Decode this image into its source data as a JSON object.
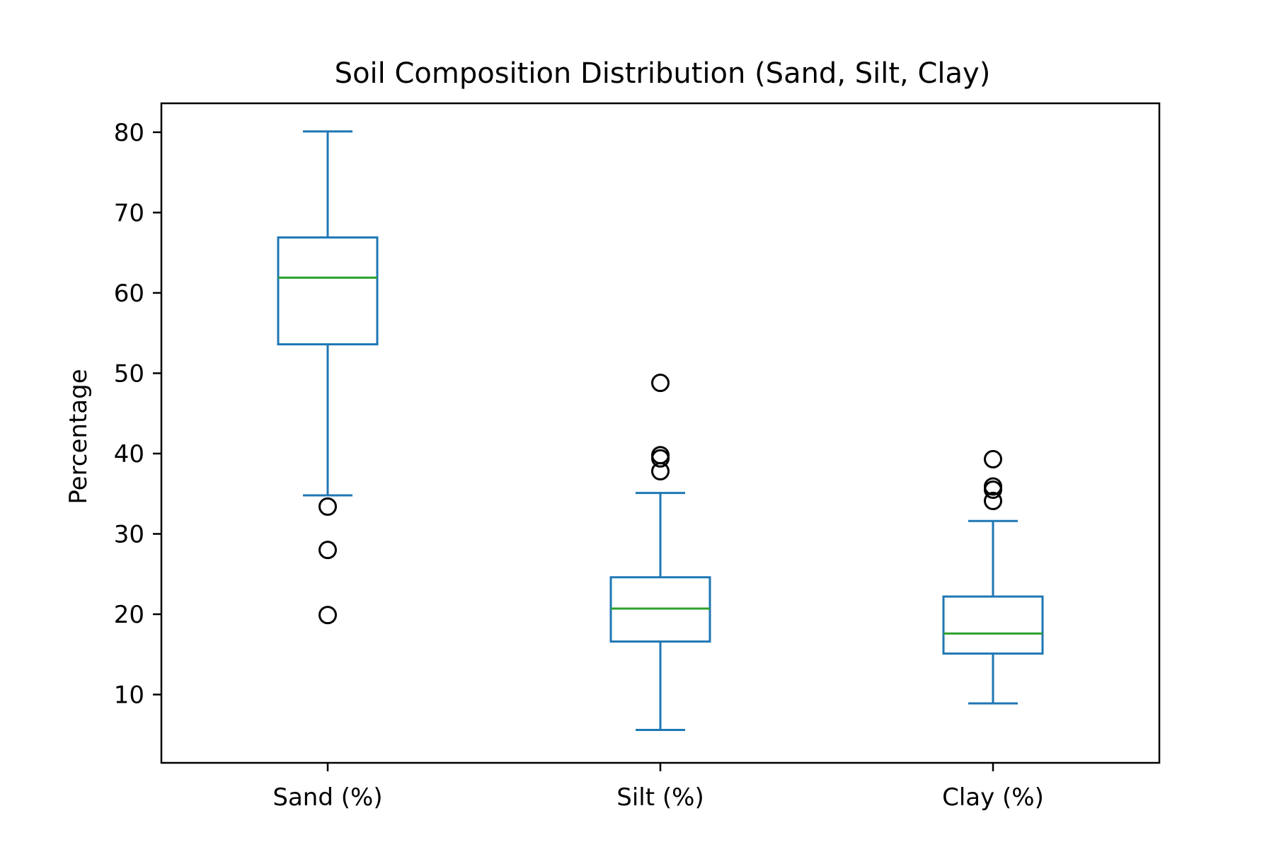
{
  "chart_data": {
    "type": "box",
    "title": "Soil Composition Distribution (Sand, Silt, Clay)",
    "xlabel": "",
    "ylabel": "Percentage",
    "ylim": [
      1.5,
      83.6
    ],
    "yticks": [
      10,
      20,
      30,
      40,
      50,
      60,
      70,
      80
    ],
    "grid": false,
    "categories": [
      "Sand (%)",
      "Silt (%)",
      "Clay (%)"
    ],
    "boxes": [
      {
        "label": "Sand (%)",
        "whisker_low": 34.8,
        "q1": 53.6,
        "median": 61.9,
        "q3": 66.9,
        "whisker_high": 80.1,
        "outliers": [
          33.4,
          28.0,
          19.9
        ]
      },
      {
        "label": "Silt (%)",
        "whisker_low": 5.6,
        "q1": 16.6,
        "median": 20.7,
        "q3": 24.6,
        "whisker_high": 35.1,
        "outliers": [
          48.8,
          39.8,
          39.4,
          37.8
        ]
      },
      {
        "label": "Clay (%)",
        "whisker_low": 8.9,
        "q1": 15.1,
        "median": 17.6,
        "q3": 22.2,
        "whisker_high": 31.6,
        "outliers": [
          39.3,
          35.9,
          35.5,
          34.1
        ]
      }
    ],
    "colors": {
      "box": "#1f77b4",
      "median": "#2ca02c",
      "outlier": "#000000",
      "axes": "#000000"
    }
  }
}
